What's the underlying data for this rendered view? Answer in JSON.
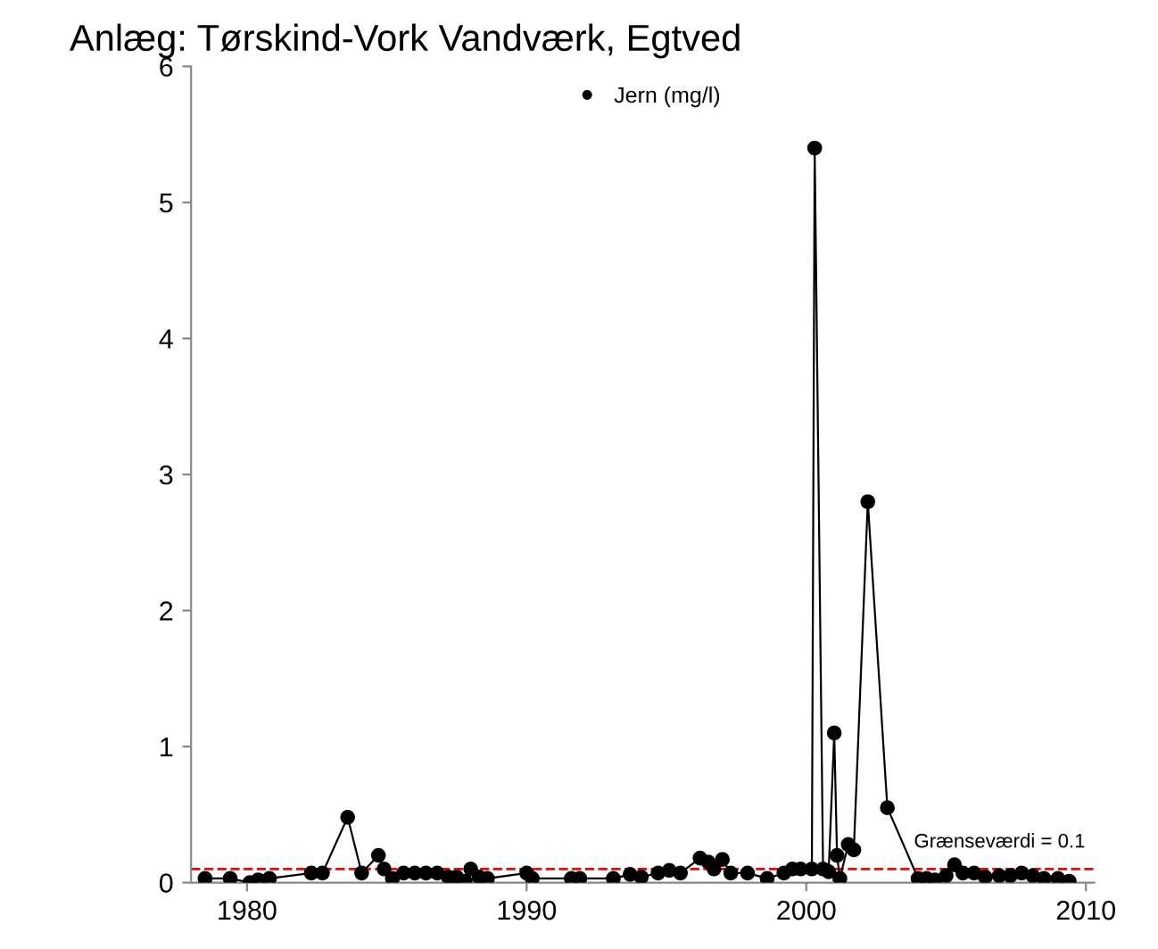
{
  "chart_data": {
    "type": "line",
    "title": "Anlæg: Tørskind-Vork Vandværk, Egtved",
    "x": [
      1978.5,
      1979.4,
      1980.1,
      1980.4,
      1980.8,
      1982.3,
      1982.7,
      1983.6,
      1984.1,
      1984.7,
      1984.9,
      1985.2,
      1985.6,
      1986.0,
      1986.4,
      1986.8,
      1987.2,
      1987.5,
      1987.8,
      1988.0,
      1988.3,
      1988.6,
      1990.0,
      1990.2,
      1991.6,
      1991.9,
      1993.1,
      1993.7,
      1994.1,
      1994.7,
      1995.1,
      1995.5,
      1996.2,
      1996.5,
      1996.7,
      1997.0,
      1997.3,
      1997.9,
      1998.6,
      1999.2,
      1999.5,
      1999.8,
      2000.2,
      2000.3,
      2000.6,
      2000.8,
      2001.0,
      2001.1,
      2001.2,
      2001.5,
      2001.7,
      2002.2,
      2002.9,
      2004.0,
      2004.3,
      2004.6,
      2005.0,
      2005.3,
      2005.6,
      2006.0,
      2006.4,
      2006.9,
      2007.3,
      2007.7,
      2008.1,
      2008.5,
      2009.0,
      2009.4
    ],
    "series": [
      {
        "name": "Jern (mg/l)",
        "color": "#000000",
        "values": [
          0.03,
          0.03,
          0.0,
          0.02,
          0.03,
          0.07,
          0.07,
          0.48,
          0.07,
          0.2,
          0.1,
          0.03,
          0.07,
          0.07,
          0.07,
          0.07,
          0.04,
          0.04,
          0.01,
          0.1,
          0.04,
          0.03,
          0.07,
          0.03,
          0.03,
          0.03,
          0.03,
          0.06,
          0.04,
          0.07,
          0.09,
          0.07,
          0.18,
          0.15,
          0.1,
          0.17,
          0.07,
          0.07,
          0.03,
          0.07,
          0.1,
          0.1,
          0.1,
          5.4,
          0.1,
          0.08,
          1.1,
          0.2,
          0.03,
          0.28,
          0.24,
          2.8,
          0.55,
          0.03,
          0.03,
          0.02,
          0.05,
          0.13,
          0.07,
          0.07,
          0.04,
          0.05,
          0.05,
          0.07,
          0.05,
          0.03,
          0.03,
          0.01
        ]
      }
    ],
    "xlim": [
      1978,
      2010.3
    ],
    "xticks": [
      1980,
      1990,
      2000,
      2010
    ],
    "ylim": [
      0,
      6
    ],
    "yticks": [
      0,
      1,
      2,
      3,
      4,
      5,
      6
    ],
    "ref_lines": [
      {
        "axis": "y",
        "value": 0.1,
        "label": "Grænseværdi = 0.1",
        "color": "#ff0000",
        "line_style": "dashed"
      }
    ],
    "marker": "circle",
    "line_style": "solid",
    "grid": false,
    "legend": "top"
  }
}
